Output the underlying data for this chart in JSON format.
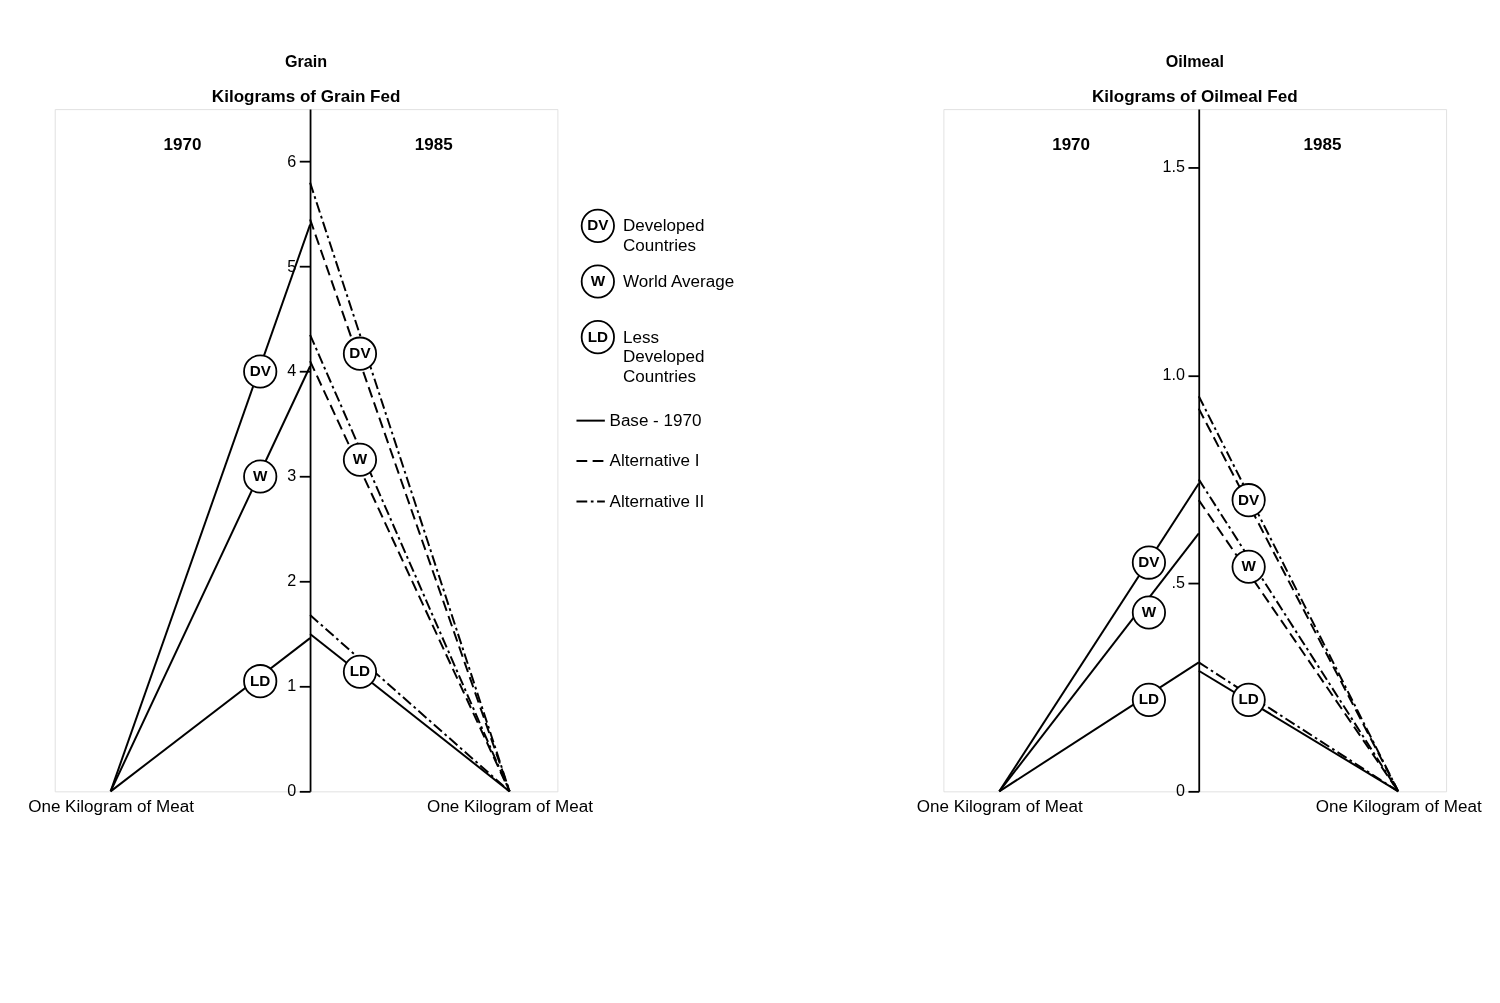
{
  "chart_data": [
    {
      "type": "line",
      "title": "Grain",
      "ylabel": "Kilograms of Grain Fed",
      "categories": [
        "One Kilogram of Meat",
        null,
        "One Kilogram of Meat"
      ],
      "ylim": [
        0,
        6.5
      ],
      "yticks": [
        0,
        1,
        2,
        3,
        4,
        5,
        6
      ],
      "grid": false,
      "legend": "right",
      "series": [
        {
          "color": "#000000",
          "line_style": "solid",
          "values": [
            0,
            5.4,
            null
          ]
        },
        {
          "color": "#000000",
          "line_style": "solid",
          "values": [
            0,
            4.05,
            null
          ]
        },
        {
          "color": "#000000",
          "line_style": "solid",
          "values": [
            0,
            1.46,
            null
          ]
        },
        {
          "name": "Base - 1970",
          "color": "#000000",
          "line_style": "solid",
          "values": [
            null,
            1.5,
            0
          ]
        },
        {
          "name": "Alternative I",
          "color": "#000000",
          "line_style": "dashed",
          "values": [
            null,
            5.45,
            0
          ]
        },
        {
          "color": "#000000",
          "line_style": "dashed",
          "values": [
            null,
            4.1,
            0
          ]
        },
        {
          "name": "Alternative II",
          "color": "#000000",
          "line_style": "dashdot",
          "values": [
            null,
            5.8,
            0
          ]
        },
        {
          "color": "#000000",
          "line_style": "dashdot",
          "values": [
            null,
            4.35,
            0
          ]
        },
        {
          "color": "#000000",
          "line_style": "dashdot",
          "values": [
            null,
            1.68,
            0
          ]
        }
      ],
      "annotations": [
        "1970",
        "1985",
        {
          "text": "DV",
          "y": 4.0
        },
        {
          "text": "W",
          "y": 3.0
        },
        {
          "text": "LD",
          "y": 1.05
        },
        {
          "text": "DV",
          "y": 4.17
        },
        {
          "text": "W",
          "y": 3.16
        },
        {
          "text": "LD",
          "y": 1.14
        },
        "DV",
        "Developed Countries",
        "W",
        "World Average",
        "LD",
        "Less Developed Countries"
      ]
    },
    {
      "type": "line",
      "title": "Oilmeal",
      "ylabel": "Kilograms of Oilmeal Fed",
      "categories": [
        "One Kilogram of Meat",
        null,
        "One Kilogram of Meat"
      ],
      "ylim": [
        0,
        1.64
      ],
      "yticks": [
        0,
        {
          "value": 0.5,
          "label": ".5"
        },
        {
          "value": 1,
          "label": "1.0"
        },
        {
          "value": 1.5,
          "label": "1.5"
        }
      ],
      "grid": false,
      "legend": false,
      "series": [
        {
          "color": "#000000",
          "line_style": "solid",
          "values": [
            0,
            0.74,
            null
          ]
        },
        {
          "color": "#000000",
          "line_style": "solid",
          "values": [
            0,
            0.62,
            null
          ]
        },
        {
          "color": "#000000",
          "line_style": "solid",
          "values": [
            0,
            0.31,
            null
          ]
        },
        {
          "color": "#000000",
          "line_style": "solid",
          "values": [
            null,
            0.29,
            0
          ]
        },
        {
          "color": "#000000",
          "line_style": "dashed",
          "values": [
            null,
            0.92,
            0
          ]
        },
        {
          "color": "#000000",
          "line_style": "dashed",
          "values": [
            null,
            0.7,
            0
          ]
        },
        {
          "color": "#000000",
          "line_style": "dashdot",
          "values": [
            null,
            0.95,
            0
          ]
        },
        {
          "color": "#000000",
          "line_style": "dashdot",
          "values": [
            null,
            0.75,
            0
          ]
        },
        {
          "color": "#000000",
          "line_style": "dashdot",
          "values": [
            null,
            0.31,
            0
          ]
        }
      ],
      "annotations": [
        "1970",
        "1985",
        {
          "text": "DV",
          "y": 0.55
        },
        {
          "text": "W",
          "y": 0.43
        },
        {
          "text": "LD",
          "y": 0.22
        },
        {
          "text": "DV",
          "y": 0.7
        },
        {
          "text": "W",
          "y": 0.54
        },
        {
          "text": "LD",
          "y": 0.22
        }
      ]
    }
  ]
}
